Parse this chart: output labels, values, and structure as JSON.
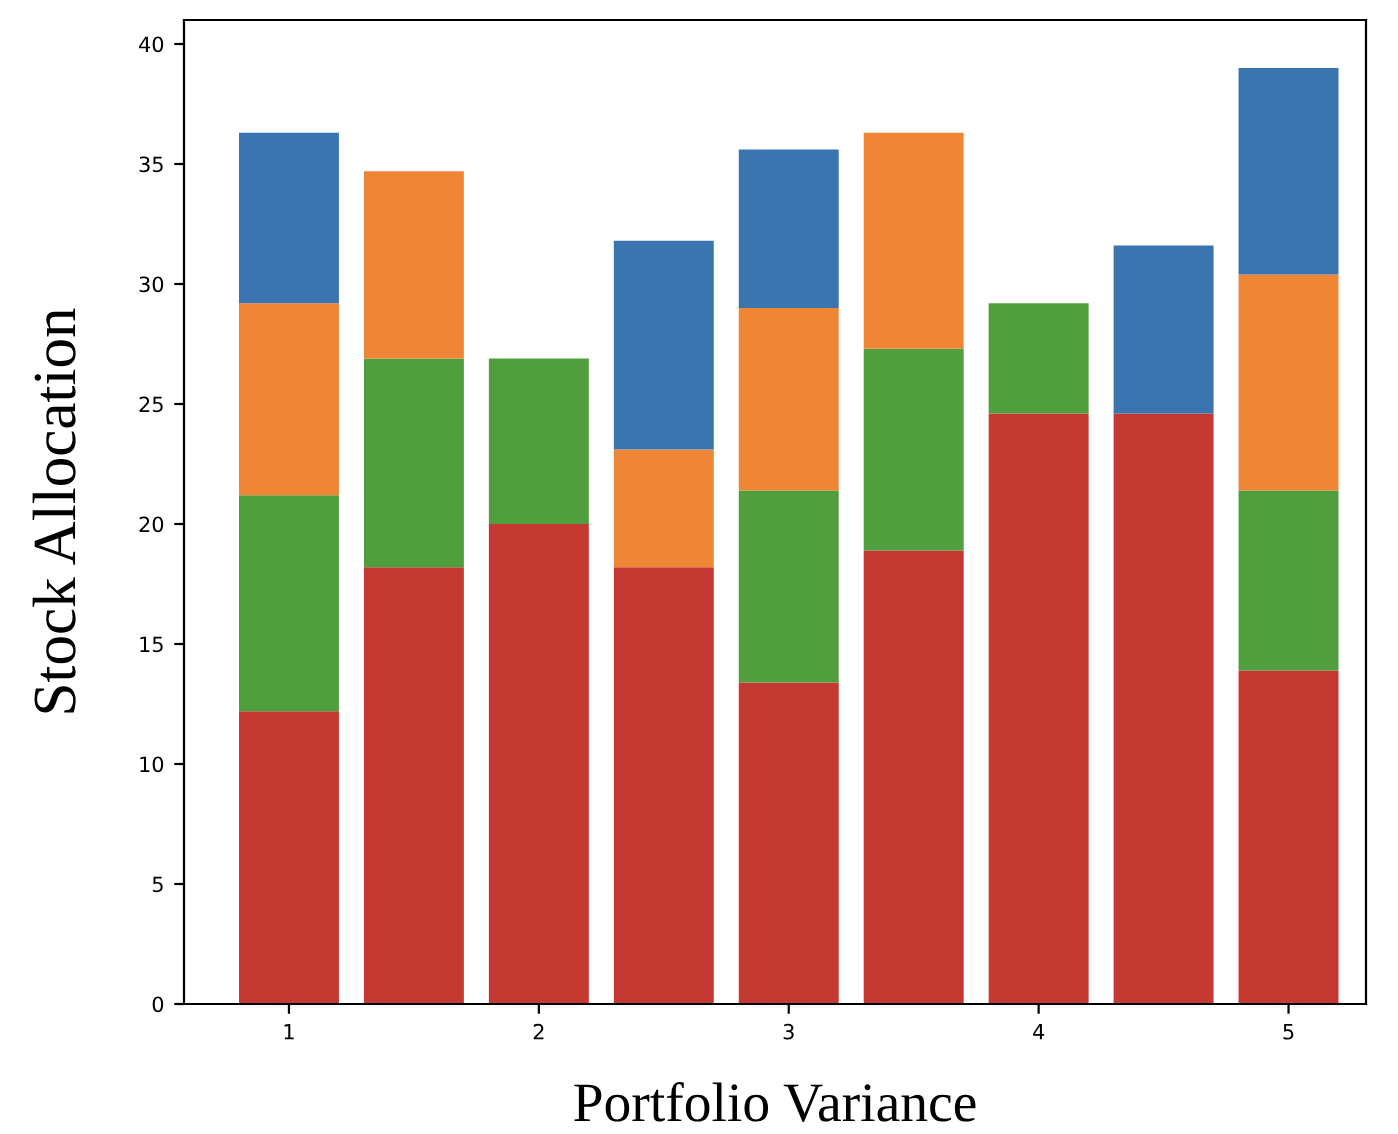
{
  "chart_data": {
    "type": "bar",
    "stacked": true,
    "xlabel": "Portfolio Variance",
    "ylabel": "Stock Allocation",
    "x": [
      1,
      1.5,
      2,
      2.5,
      3,
      3.5,
      4,
      4.5,
      5
    ],
    "series": [
      {
        "color": "#c43932",
        "values": [
          12.2,
          18.2,
          20.0,
          18.2,
          13.4,
          18.9,
          24.6,
          24.6,
          13.9
        ]
      },
      {
        "color": "#519e3e",
        "values": [
          9.0,
          8.7,
          6.9,
          0,
          8.0,
          8.4,
          4.6,
          0,
          7.5
        ]
      },
      {
        "color": "#ef8636",
        "values": [
          8.0,
          7.8,
          0,
          4.9,
          7.6,
          9.0,
          0,
          0,
          9.0
        ]
      },
      {
        "color": "#3a75af",
        "values": [
          7.1,
          0,
          0,
          8.7,
          6.6,
          0,
          0,
          7.0,
          8.6
        ]
      }
    ],
    "xlim": [
      0.58,
      5.31
    ],
    "ylim": [
      0,
      41
    ],
    "xticks": [
      1,
      2,
      3,
      4,
      5
    ],
    "yticks": [
      0,
      5,
      10,
      15,
      20,
      25,
      30,
      35,
      40
    ],
    "grid": false
  }
}
